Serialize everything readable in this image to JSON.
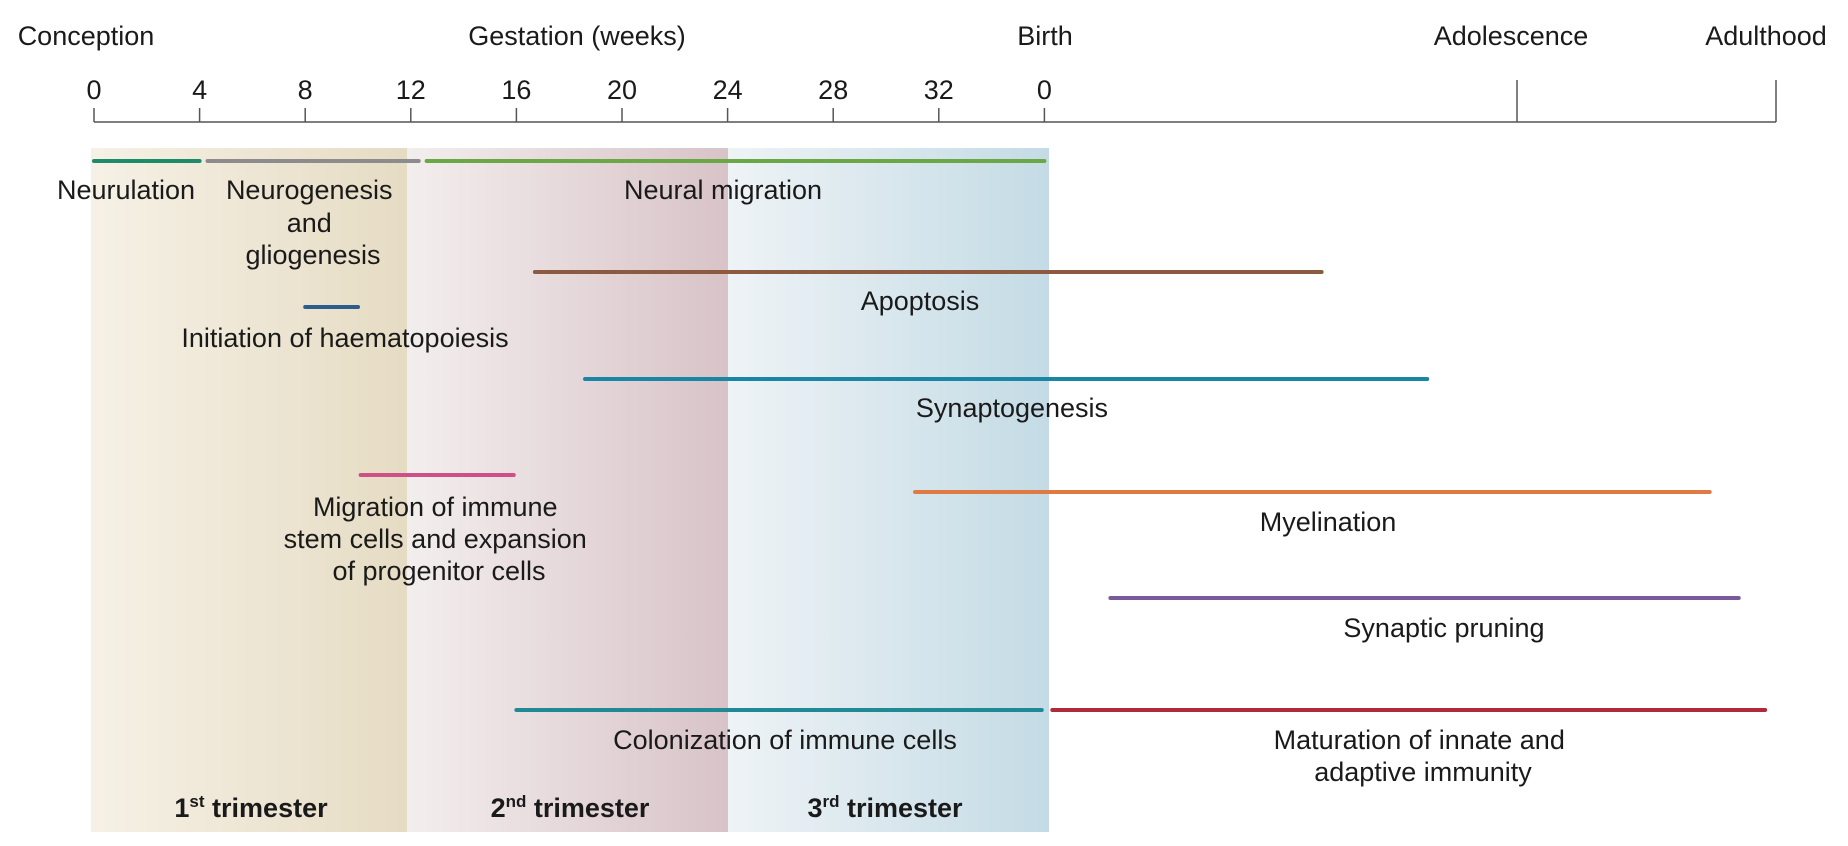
{
  "header_labels": {
    "conception": "Conception",
    "gestation": "Gestation (weeks)",
    "birth": "Birth",
    "adolescence": "Adolescence",
    "adulthood": "Adulthood"
  },
  "week_ticks": [
    "0",
    "4",
    "8",
    "12",
    "16",
    "20",
    "24",
    "28",
    "32",
    "0"
  ],
  "trimesters": [
    {
      "num": "1",
      "sup": "st",
      "rest": " trimester",
      "from_week": 0,
      "to_week": 12,
      "color": "#e6dcc4"
    },
    {
      "num": "2",
      "sup": "nd",
      "rest": " trimester",
      "from_week": 12,
      "to_week": 24,
      "color": "#d8c3c8"
    },
    {
      "num": "3",
      "sup": "rd",
      "rest": " trimester",
      "from_week": 24,
      "to_week": 36,
      "color": "#c4dbe5"
    }
  ],
  "processes": [
    {
      "key": "neurulation",
      "label": [
        "Neurulation"
      ],
      "start": 0,
      "end": 4,
      "color": "#1d8a68"
    },
    {
      "key": "neurogenesis",
      "label": [
        "Neurogenesis",
        "and",
        "gliogenesis"
      ],
      "start": 4.3,
      "end": 12.3,
      "color": "#8c8c8c"
    },
    {
      "key": "neural-migration",
      "label": [
        "Neural migration"
      ],
      "start": 12.6,
      "end": 36,
      "color": "#6aa846"
    },
    {
      "key": "apoptosis",
      "label": [
        "Apoptosis"
      ],
      "start": 16.7,
      "end": 46.5,
      "color": "#8b5a40"
    },
    {
      "key": "haematopoiesis",
      "label": [
        "Initiation of haematopoiesis"
      ],
      "start": 8,
      "end": 10,
      "color": "#2d5d8c"
    },
    {
      "key": "synaptogenesis",
      "label": [
        "Synaptogenesis"
      ],
      "start": 18.6,
      "end": 50.5,
      "color": "#1a86a6"
    },
    {
      "key": "immune-migration",
      "label": [
        "Migration of immune",
        "stem cells and expansion",
        "of progenitor cells"
      ],
      "start": 10.1,
      "end": 15.9,
      "color": "#cf4f88"
    },
    {
      "key": "myelination",
      "label": [
        "Myelination"
      ],
      "start": 31.1,
      "end": 61.2,
      "color": "#e07a45"
    },
    {
      "key": "synaptic-pruning",
      "label": [
        "Synaptic pruning"
      ],
      "start": 38.5,
      "end": 62.3,
      "color": "#7a5a9a"
    },
    {
      "key": "colonization",
      "label": [
        "Colonization of immune cells"
      ],
      "start": 16,
      "end": 35.9,
      "color": "#1f8a95"
    },
    {
      "key": "immunity-maturation",
      "label": [
        "Maturation of innate and",
        "adaptive immunity"
      ],
      "start": 36.3,
      "end": 63.3,
      "color": "#b02a3a"
    }
  ]
}
